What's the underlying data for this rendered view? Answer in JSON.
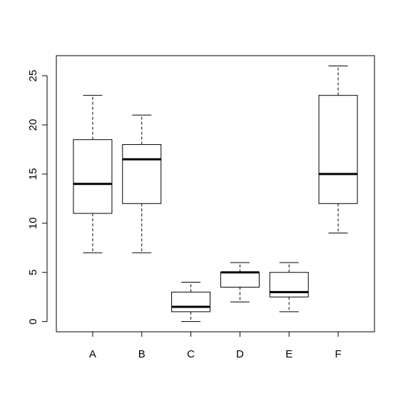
{
  "chart_data": {
    "type": "box",
    "title": "",
    "xlabel": "",
    "ylabel": "",
    "categories": [
      "A",
      "B",
      "C",
      "D",
      "E",
      "F"
    ],
    "boxes": [
      {
        "name": "A",
        "min": 7,
        "q1": 11,
        "median": 14,
        "q3": 18.5,
        "max": 23
      },
      {
        "name": "B",
        "min": 7,
        "q1": 12,
        "median": 16.5,
        "q3": 18,
        "max": 21
      },
      {
        "name": "C",
        "min": 0,
        "q1": 1,
        "median": 1.5,
        "q3": 3,
        "max": 4
      },
      {
        "name": "D",
        "min": 2,
        "q1": 3.5,
        "median": 5,
        "q3": 5,
        "max": 6
      },
      {
        "name": "E",
        "min": 1,
        "q1": 2.5,
        "median": 3,
        "q3": 5,
        "max": 6
      },
      {
        "name": "F",
        "min": 9,
        "q1": 12,
        "median": 15,
        "q3": 23,
        "max": 26
      }
    ],
    "y_ticks": [
      0,
      5,
      10,
      15,
      20,
      25
    ],
    "ylim": [
      -1.04,
      27.04
    ],
    "grid": false,
    "colors": {
      "box_fill": "#ffffff",
      "stroke": "#000000"
    }
  }
}
